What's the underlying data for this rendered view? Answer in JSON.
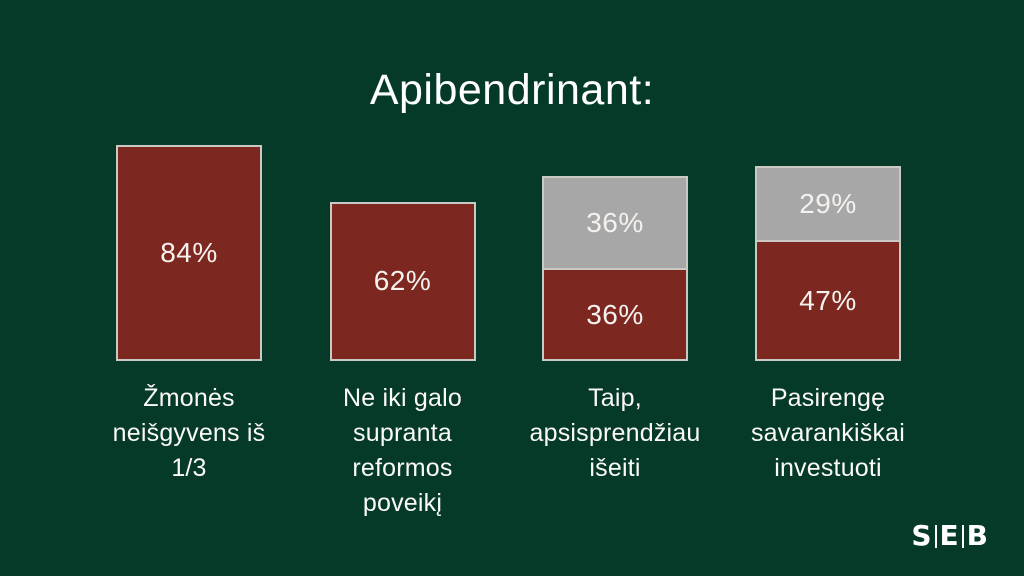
{
  "slide": {
    "title": "Apibendrinant:",
    "background_color": "#053a28",
    "border_color": "#cbc9c3",
    "value_text_color": "#f5f1ee",
    "label_text_color": "#fbfaf7"
  },
  "logo": {
    "name": "SEB",
    "letters": [
      "S",
      "E",
      "B"
    ]
  },
  "chart_data": {
    "type": "bar",
    "subtype": "stacked-column",
    "title": "Apibendrinant:",
    "unit": "%",
    "grid": false,
    "legend": "none",
    "axes": "none",
    "categories": [
      "Žmonės neišgyvens iš 1/3",
      "Ne iki galo supranta reformos poveikį",
      "Taip, apsisprendžiau išeiti",
      "Pasirengę savarankiškai investuoti"
    ],
    "category_lines": [
      [
        "Žmonės",
        "neišgyvens iš",
        "1/3"
      ],
      [
        "Ne iki galo",
        "supranta",
        "reformos",
        "poveikį"
      ],
      [
        "Taip,",
        "apsisprendžiau",
        "išeiti"
      ],
      [
        "Pasirengę",
        "savarankiškai",
        "investuoti"
      ]
    ],
    "series": [
      {
        "name": "red-segment",
        "color": "#7c2820",
        "values": [
          84,
          62,
          36,
          47
        ]
      },
      {
        "name": "gray-segment",
        "color": "#a7a7a7",
        "values": [
          0,
          0,
          36,
          29
        ]
      }
    ],
    "value_labels": [
      [
        "84%"
      ],
      [
        "62%"
      ],
      [
        "36%",
        "36%"
      ],
      [
        "29%",
        "47%"
      ]
    ]
  }
}
